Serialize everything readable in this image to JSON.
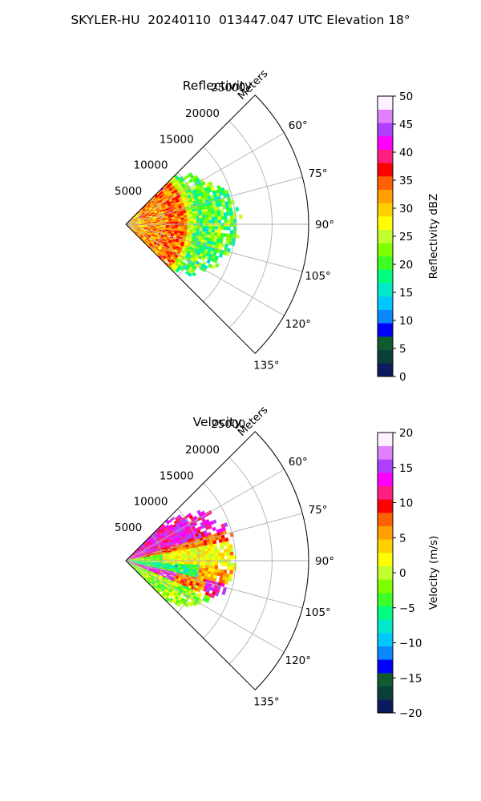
{
  "figure": {
    "title": "SKYLER-HU  20240110  013447.047 UTC Elevation 18°"
  },
  "chart_data": [
    {
      "type": "heatmap",
      "projection": "polar-sector",
      "title": "Reflectivity",
      "range_label": "Meters",
      "range_ticks": [
        5000,
        10000,
        15000,
        20000,
        25000
      ],
      "range_max": 25000,
      "azimuth_ticks": [
        "60°",
        "75°",
        "90°",
        "105°",
        "120°",
        "135°"
      ],
      "azimuth_range_deg": [
        45,
        135
      ],
      "grid": true,
      "colorbar": {
        "label": "Reflectivity dBZ",
        "min": 0,
        "max": 50,
        "ticks": [
          0,
          5,
          10,
          15,
          20,
          25,
          30,
          35,
          40,
          45,
          50
        ],
        "colors": [
          "#0a1b5e",
          "#0b3f3a",
          "#0e5c2f",
          "#0000ff",
          "#0a88ff",
          "#00c8ff",
          "#00e8c8",
          "#00ff80",
          "#3cff28",
          "#80ff00",
          "#c0ff30",
          "#ffff00",
          "#ffd000",
          "#ffa000",
          "#ff6000",
          "#ff0000",
          "#ff2080",
          "#ff00ff",
          "#b040ff",
          "#e080ff",
          "#fff0ff"
        ]
      },
      "dominant_values": [
        {
          "range_m": [
            0,
            5000
          ],
          "value_dbz": 32
        },
        {
          "range_m": [
            5000,
            9000
          ],
          "value_dbz": 33
        },
        {
          "range_m": [
            9000,
            15000
          ],
          "value_dbz": 20
        }
      ],
      "data_extent_m": 15500
    },
    {
      "type": "heatmap",
      "projection": "polar-sector",
      "title": "Velocity",
      "range_label": "Meters",
      "range_ticks": [
        5000,
        10000,
        15000,
        20000,
        25000
      ],
      "range_max": 25000,
      "azimuth_ticks": [
        "60°",
        "75°",
        "90°",
        "105°",
        "120°",
        "135°"
      ],
      "azimuth_range_deg": [
        45,
        135
      ],
      "grid": true,
      "colorbar": {
        "label": "Velocity (m/s)",
        "min": -20,
        "max": 20,
        "ticks": [
          -20,
          -15,
          -10,
          -5,
          0,
          5,
          10,
          15,
          20
        ],
        "colors": [
          "#0a1b5e",
          "#0b3f3a",
          "#0e5c2f",
          "#0000ff",
          "#0a88ff",
          "#00c8ff",
          "#00e8c8",
          "#00ff80",
          "#3cff28",
          "#80ff00",
          "#c0ff30",
          "#ffff00",
          "#ffd000",
          "#ffa000",
          "#ff6000",
          "#ff0000",
          "#ff2080",
          "#ff00ff",
          "#b040ff",
          "#e080ff",
          "#fff0ff"
        ]
      },
      "dominant_values": [
        {
          "azimuth_deg": [
            55,
            78
          ],
          "value_ms": 8
        },
        {
          "azimuth_deg": [
            78,
            92
          ],
          "value_ms": 1
        },
        {
          "azimuth_deg": [
            92,
            125
          ],
          "value_ms": -5
        }
      ],
      "data_extent_m": 15500
    }
  ]
}
